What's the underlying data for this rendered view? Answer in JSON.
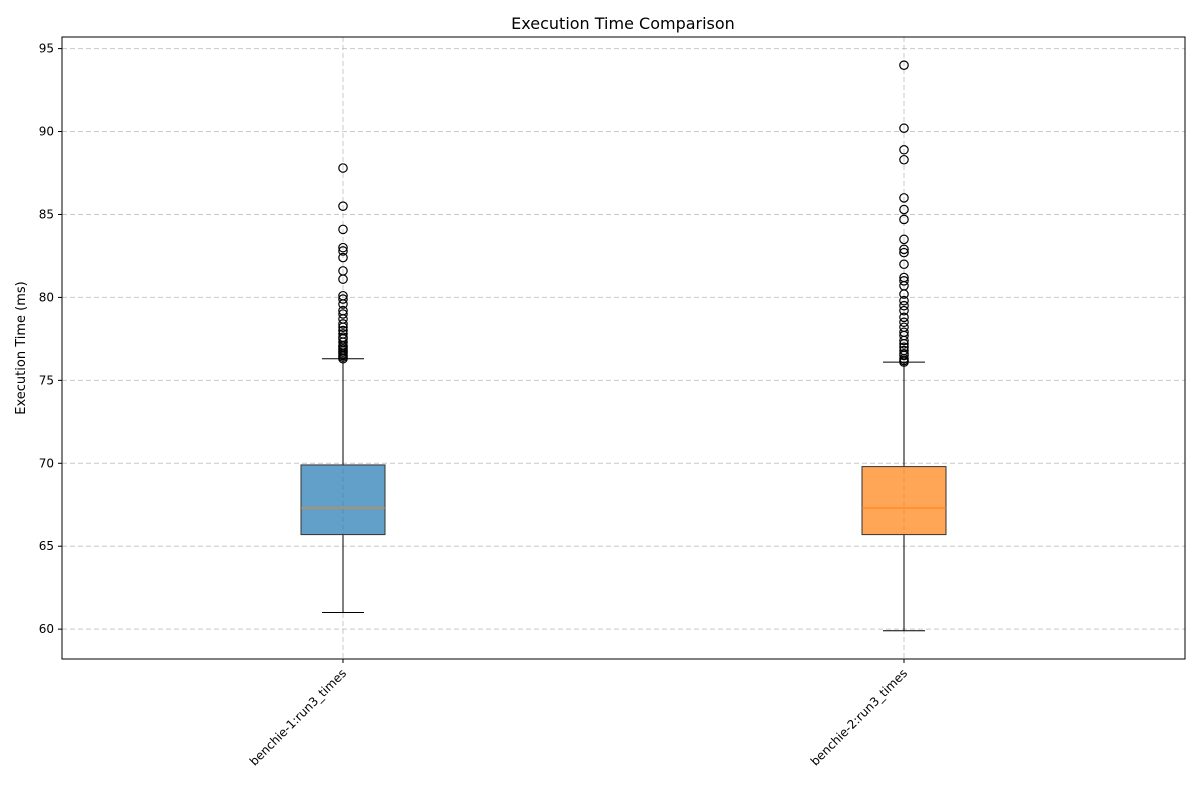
{
  "chart_data": {
    "type": "boxplot",
    "title": "Execution Time Comparison",
    "xlabel": "",
    "ylabel": "Execution Time (ms)",
    "ylim": [
      58.2,
      95.7
    ],
    "yticks": [
      60,
      65,
      70,
      75,
      80,
      85,
      90,
      95
    ],
    "grid": true,
    "categories": [
      "benchie-1:run3_times",
      "benchie-2:run3_times"
    ],
    "series": [
      {
        "color": "#1f77b4",
        "whisker_low": 61.0,
        "q1": 65.7,
        "median": 67.3,
        "q3": 69.9,
        "whisker_high": 76.3,
        "outliers": [
          76.3,
          76.4,
          76.5,
          76.6,
          76.7,
          76.8,
          76.9,
          77.0,
          77.1,
          77.3,
          77.5,
          77.6,
          77.8,
          78.0,
          78.2,
          78.4,
          78.7,
          79.0,
          79.2,
          79.6,
          79.9,
          80.1,
          81.1,
          81.6,
          82.4,
          82.8,
          83.0,
          84.1,
          85.5,
          87.8
        ]
      },
      {
        "color": "#ff7f0e",
        "whisker_low": 59.9,
        "q1": 65.7,
        "median": 67.3,
        "q3": 69.8,
        "whisker_high": 76.1,
        "outliers": [
          76.1,
          76.2,
          76.3,
          76.5,
          76.6,
          76.8,
          77.0,
          77.2,
          77.4,
          77.7,
          77.9,
          78.2,
          78.5,
          78.8,
          79.2,
          79.5,
          79.8,
          80.2,
          80.7,
          81.0,
          81.2,
          82.0,
          82.7,
          82.9,
          83.5,
          84.7,
          85.3,
          86.0,
          88.3,
          88.9,
          90.2,
          94.0
        ]
      }
    ]
  }
}
